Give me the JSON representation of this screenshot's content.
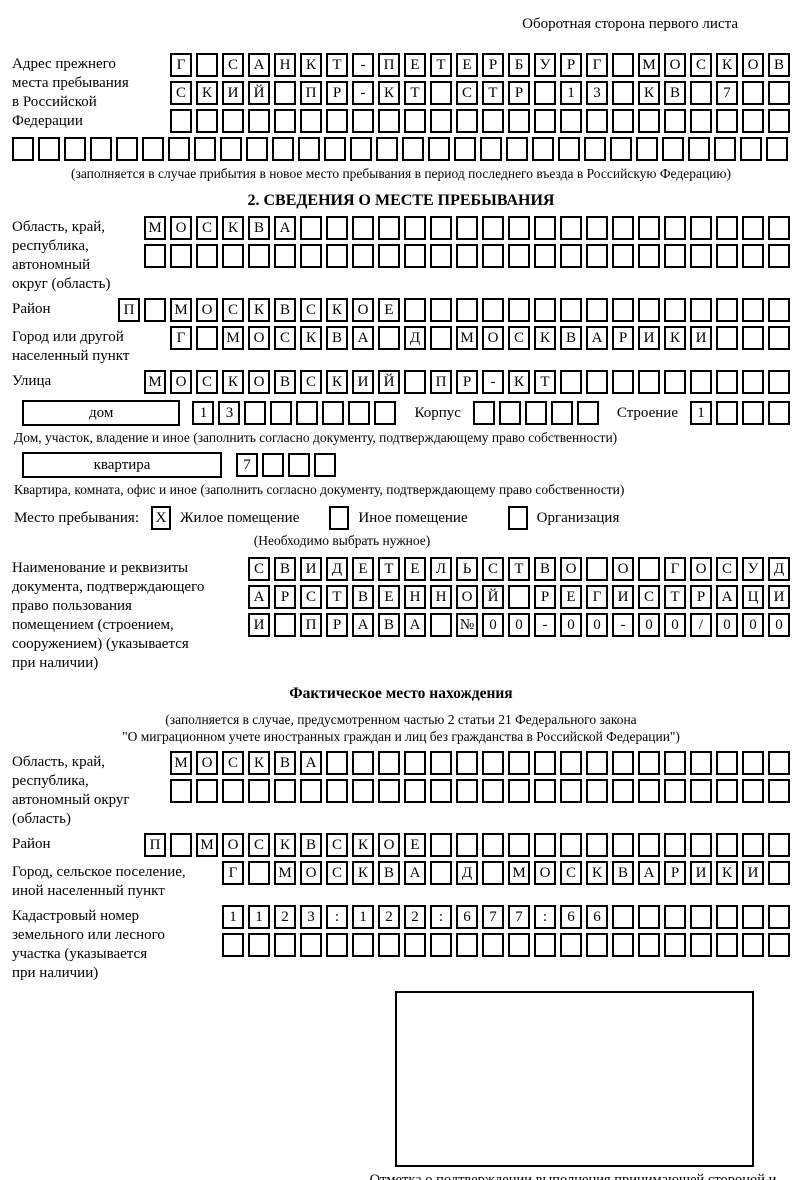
{
  "page": {
    "corner_note": "Оборотная сторона первого листа"
  },
  "prev_address": {
    "label": "Адрес прежнего\nместа пребывания\nв Российской\nФедерации",
    "rows": [
      [
        "Г",
        "",
        "С",
        "А",
        "Н",
        "К",
        "Т",
        "-",
        "П",
        "Е",
        "Т",
        "Е",
        "Р",
        "Б",
        "У",
        "Р",
        "Г",
        "",
        "М",
        "О",
        "С",
        "К",
        "О",
        "В"
      ],
      [
        "С",
        "К",
        "И",
        "Й",
        "",
        "П",
        "Р",
        "-",
        "К",
        "Т",
        "",
        "С",
        "Т",
        "Р",
        "",
        "1",
        "3",
        "",
        "К",
        "В",
        "",
        "7",
        "",
        ""
      ],
      [
        "",
        "",
        "",
        "",
        "",
        "",
        "",
        "",
        "",
        "",
        "",
        "",
        "",
        "",
        "",
        "",
        "",
        "",
        "",
        "",
        "",
        "",
        "",
        ""
      ]
    ],
    "full_row": [
      "",
      "",
      "",
      "",
      "",
      "",
      "",
      "",
      "",
      "",
      "",
      "",
      "",
      "",
      "",
      "",
      "",
      "",
      "",
      "",
      "",
      "",
      "",
      "",
      "",
      "",
      "",
      "",
      "",
      ""
    ],
    "note": "(заполняется в случае прибытия в новое место пребывания в период последнего въезда в Российскую Федерацию)"
  },
  "section2": {
    "title": "2. СВЕДЕНИЯ О МЕСТЕ ПРЕБЫВАНИЯ",
    "region": {
      "label": "Область, край,\nреспублика,\nавтономный\nокруг (область)",
      "rows": [
        [
          "М",
          "О",
          "С",
          "К",
          "В",
          "А",
          "",
          "",
          "",
          "",
          "",
          "",
          "",
          "",
          "",
          "",
          "",
          "",
          "",
          "",
          "",
          "",
          "",
          "",
          ""
        ],
        [
          "",
          "",
          "",
          "",
          "",
          "",
          "",
          "",
          "",
          "",
          "",
          "",
          "",
          "",
          "",
          "",
          "",
          "",
          "",
          "",
          "",
          "",
          "",
          "",
          ""
        ]
      ]
    },
    "district": {
      "label": "Район",
      "row": [
        "П",
        "",
        "М",
        "О",
        "С",
        "К",
        "В",
        "С",
        "К",
        "О",
        "Е",
        "",
        "",
        "",
        "",
        "",
        "",
        "",
        "",
        "",
        "",
        "",
        "",
        "",
        "",
        ""
      ]
    },
    "city": {
      "label": "Город или другой\nнаселенный пункт",
      "row": [
        "Г",
        "",
        "М",
        "О",
        "С",
        "К",
        "В",
        "А",
        "",
        "Д",
        "",
        "М",
        "О",
        "С",
        "К",
        "В",
        "А",
        "Р",
        "И",
        "К",
        "И",
        "",
        "",
        ""
      ]
    },
    "street": {
      "label": "Улица",
      "row": [
        "М",
        "О",
        "С",
        "К",
        "О",
        "В",
        "С",
        "К",
        "И",
        "Й",
        "",
        "П",
        "Р",
        "-",
        "К",
        "Т",
        "",
        "",
        "",
        "",
        "",
        "",
        "",
        "",
        ""
      ]
    },
    "house": {
      "box_label": "дом",
      "cells": [
        "1",
        "3",
        "",
        "",
        "",
        "",
        "",
        ""
      ],
      "korpus_label": "Корпус",
      "korpus_cells": [
        "",
        "",
        "",
        "",
        ""
      ],
      "stroenie_label": "Строение",
      "stroenie_cells": [
        "1",
        "",
        "",
        ""
      ],
      "caption": "Дом, участок, владение и иное (заполнить согласно документу, подтверждающему право собственности)"
    },
    "apartment": {
      "box_label": "квартира",
      "cells": [
        "7",
        "",
        "",
        ""
      ],
      "caption": "Квартира, комната, офис и иное (заполнить согласно документу, подтверждающему право собственности)"
    },
    "stay_type": {
      "label": "Место пребывания:",
      "options": [
        {
          "label": "Жилое помещение",
          "mark": "X"
        },
        {
          "label": "Иное помещение",
          "mark": ""
        },
        {
          "label": "Организация",
          "mark": ""
        }
      ],
      "note": "(Необходимо выбрать нужное)"
    },
    "document": {
      "label": "Наименование и реквизиты\nдокумента, подтверждающего\nправо пользования\nпомещением (строением,\nсооружением) (указывается\nпри наличии)",
      "rows": [
        [
          "С",
          "В",
          "И",
          "Д",
          "Е",
          "Т",
          "Е",
          "Л",
          "Ь",
          "С",
          "Т",
          "В",
          "О",
          "",
          "О",
          "",
          "Г",
          "О",
          "С",
          "У",
          "Д"
        ],
        [
          "А",
          "Р",
          "С",
          "Т",
          "В",
          "Е",
          "Н",
          "Н",
          "О",
          "Й",
          "",
          "Р",
          "Е",
          "Г",
          "И",
          "С",
          "Т",
          "Р",
          "А",
          "Ц",
          "И"
        ],
        [
          "И",
          "",
          "П",
          "Р",
          "А",
          "В",
          "А",
          "",
          "№",
          "0",
          "0",
          "-",
          "0",
          "0",
          "-",
          "0",
          "0",
          "/",
          "0",
          "0",
          "0"
        ]
      ]
    }
  },
  "actual_location": {
    "title": "Фактическое место нахождения",
    "note_line1": "(заполняется в случае, предусмотренном частью 2 статьи 21 Федерального закона",
    "note_line2": "\"О миграционном учете иностранных граждан и лиц без гражданства в Российской Федерации\")",
    "region": {
      "label": "Область, край,\nреспублика,\nавтономный округ\n(область)",
      "rows": [
        [
          "М",
          "О",
          "С",
          "К",
          "В",
          "А",
          "",
          "",
          "",
          "",
          "",
          "",
          "",
          "",
          "",
          "",
          "",
          "",
          "",
          "",
          "",
          "",
          "",
          ""
        ],
        [
          "",
          "",
          "",
          "",
          "",
          "",
          "",
          "",
          "",
          "",
          "",
          "",
          "",
          "",
          "",
          "",
          "",
          "",
          "",
          "",
          "",
          "",
          "",
          ""
        ]
      ]
    },
    "district": {
      "label": "Район",
      "row": [
        "П",
        "",
        "М",
        "О",
        "С",
        "К",
        "В",
        "С",
        "К",
        "О",
        "Е",
        "",
        "",
        "",
        "",
        "",
        "",
        "",
        "",
        "",
        "",
        "",
        "",
        "",
        ""
      ]
    },
    "city": {
      "label": "Город, сельское поселение,\nиной населенный пункт",
      "row": [
        "Г",
        "",
        "М",
        "О",
        "С",
        "К",
        "В",
        "А",
        "",
        "Д",
        "",
        "М",
        "О",
        "С",
        "К",
        "В",
        "А",
        "Р",
        "И",
        "К",
        "И",
        ""
      ]
    },
    "cadastral": {
      "label": "Кадастровый номер\nземельного или лесного\nучастка (указывается\nпри наличии)",
      "rows": [
        [
          "1",
          "1",
          "2",
          "3",
          ":",
          "1",
          "2",
          "2",
          ":",
          "6",
          "7",
          "7",
          ":",
          "6",
          "6",
          "",
          "",
          "",
          "",
          "",
          "",
          ""
        ],
        [
          "",
          "",
          "",
          "",
          "",
          "",
          "",
          "",
          "",
          "",
          "",
          "",
          "",
          "",
          "",
          "",
          "",
          "",
          "",
          "",
          "",
          ""
        ]
      ]
    }
  },
  "stamp": {
    "caption": "Отметка о подтверждении выполнения принимающей стороной и иностранным гражданином или лицом без гражданства действий, необходимых для его постановки на учет по месту пребывания"
  }
}
